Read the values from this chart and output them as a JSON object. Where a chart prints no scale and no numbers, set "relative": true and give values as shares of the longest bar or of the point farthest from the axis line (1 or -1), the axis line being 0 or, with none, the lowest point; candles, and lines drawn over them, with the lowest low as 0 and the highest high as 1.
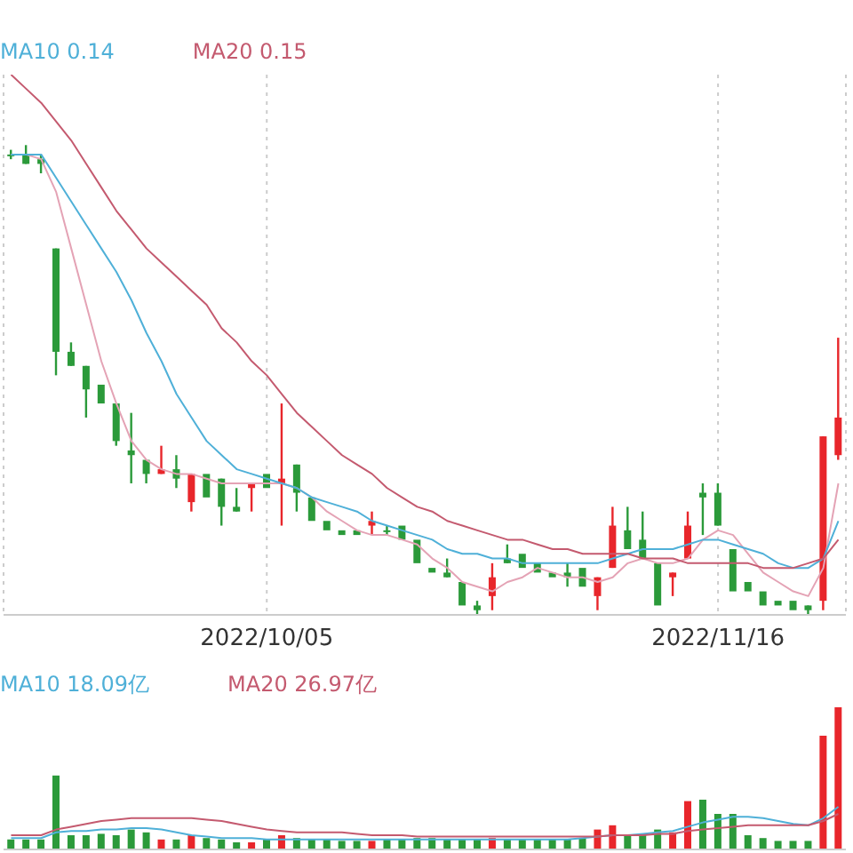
{
  "chart_data": [
    {
      "type": "candlestick",
      "relative": true,
      "legend": "top left",
      "grid": "x",
      "categories": [
        null,
        null,
        null,
        null,
        null,
        null,
        null,
        null,
        null,
        null,
        null,
        null,
        null,
        null,
        null,
        null,
        null,
        "2022/10/05",
        null,
        null,
        null,
        null,
        null,
        null,
        null,
        null,
        null,
        null,
        null,
        null,
        null,
        null,
        null,
        null,
        null,
        null,
        null,
        null,
        null,
        null,
        null,
        null,
        null,
        null,
        null,
        null,
        null,
        "2022/11/16",
        null,
        null,
        null,
        null,
        null,
        null,
        null,
        null
      ],
      "ohlc": [
        [
          0.98,
          0.99,
          0.97,
          0.98
        ],
        [
          0.98,
          1.0,
          0.96,
          0.96
        ],
        [
          0.97,
          0.98,
          0.94,
          0.96
        ],
        [
          0.78,
          0.78,
          0.51,
          0.56
        ],
        [
          0.56,
          0.58,
          0.53,
          0.53
        ],
        [
          0.53,
          0.53,
          0.42,
          0.48
        ],
        [
          0.49,
          0.49,
          0.45,
          0.45
        ],
        [
          0.45,
          0.45,
          0.36,
          0.37
        ],
        [
          0.35,
          0.43,
          0.28,
          0.34
        ],
        [
          0.33,
          0.33,
          0.28,
          0.3
        ],
        [
          0.3,
          0.36,
          0.3,
          0.31
        ],
        [
          0.31,
          0.34,
          0.27,
          0.29
        ],
        [
          0.24,
          0.3,
          0.22,
          0.3
        ],
        [
          0.3,
          0.3,
          0.25,
          0.25
        ],
        [
          0.29,
          0.29,
          0.19,
          0.23
        ],
        [
          0.23,
          0.27,
          0.22,
          0.22
        ],
        [
          0.27,
          0.28,
          0.22,
          0.28
        ],
        [
          0.3,
          0.3,
          0.27,
          0.27
        ],
        [
          0.28,
          0.45,
          0.19,
          0.29
        ],
        [
          0.32,
          0.32,
          0.22,
          0.26
        ],
        [
          0.25,
          0.25,
          0.2,
          0.2
        ],
        [
          0.2,
          0.2,
          0.18,
          0.18
        ],
        [
          0.18,
          0.18,
          0.17,
          0.17
        ],
        [
          0.18,
          0.18,
          0.17,
          0.17
        ],
        [
          0.19,
          0.22,
          0.17,
          0.2
        ],
        [
          0.18,
          0.19,
          0.17,
          0.18
        ],
        [
          0.19,
          0.19,
          0.16,
          0.16
        ],
        [
          0.16,
          0.16,
          0.11,
          0.11
        ],
        [
          0.1,
          0.1,
          0.09,
          0.09
        ],
        [
          0.09,
          0.12,
          0.08,
          0.08
        ],
        [
          0.07,
          0.07,
          0.02,
          0.02
        ],
        [
          0.02,
          0.03,
          0.0,
          0.01
        ],
        [
          0.04,
          0.11,
          0.01,
          0.08
        ],
        [
          0.12,
          0.15,
          0.11,
          0.11
        ],
        [
          0.13,
          0.13,
          0.1,
          0.1
        ],
        [
          0.11,
          0.11,
          0.09,
          0.09
        ],
        [
          0.09,
          0.09,
          0.08,
          0.08
        ],
        [
          0.09,
          0.11,
          0.06,
          0.08
        ],
        [
          0.1,
          0.1,
          0.06,
          0.06
        ],
        [
          0.04,
          0.08,
          0.01,
          0.08
        ],
        [
          0.1,
          0.23,
          0.1,
          0.19
        ],
        [
          0.18,
          0.23,
          0.14,
          0.14
        ],
        [
          0.16,
          0.22,
          0.12,
          0.12
        ],
        [
          0.11,
          0.11,
          0.02,
          0.02
        ],
        [
          0.08,
          0.09,
          0.04,
          0.09
        ],
        [
          0.12,
          0.22,
          0.12,
          0.19
        ],
        [
          0.26,
          0.28,
          0.17,
          0.25
        ],
        [
          0.26,
          0.28,
          0.19,
          0.19
        ],
        [
          0.14,
          0.14,
          0.05,
          0.05
        ],
        [
          0.07,
          0.07,
          0.05,
          0.05
        ],
        [
          0.05,
          0.05,
          0.02,
          0.02
        ],
        [
          0.03,
          0.03,
          0.02,
          0.02
        ],
        [
          0.03,
          0.03,
          0.01,
          0.01
        ],
        [
          0.02,
          0.02,
          0.0,
          0.01
        ],
        [
          0.03,
          0.38,
          0.01,
          0.38
        ],
        [
          0.34,
          0.59,
          0.33,
          0.42
        ]
      ],
      "colors": [
        "#2b9a3a",
        "#2b9a3a",
        "#2b9a3a",
        "#2b9a3a",
        "#2b9a3a",
        "#2b9a3a",
        "#2b9a3a",
        "#2b9a3a",
        "#2b9a3a",
        "#2b9a3a",
        "#e8262b",
        "#2b9a3a",
        "#e8262b",
        "#2b9a3a",
        "#2b9a3a",
        "#2b9a3a",
        "#e8262b",
        "#2b9a3a",
        "#e8262b",
        "#2b9a3a",
        "#2b9a3a",
        "#2b9a3a",
        "#2b9a3a",
        "#2b9a3a",
        "#e8262b",
        "#2b9a3a",
        "#2b9a3a",
        "#2b9a3a",
        "#2b9a3a",
        "#2b9a3a",
        "#2b9a3a",
        "#2b9a3a",
        "#e8262b",
        "#2b9a3a",
        "#2b9a3a",
        "#2b9a3a",
        "#2b9a3a",
        "#2b9a3a",
        "#2b9a3a",
        "#e8262b",
        "#e8262b",
        "#2b9a3a",
        "#2b9a3a",
        "#2b9a3a",
        "#e8262b",
        "#e8262b",
        "#2b9a3a",
        "#2b9a3a",
        "#2b9a3a",
        "#2b9a3a",
        "#2b9a3a",
        "#2b9a3a",
        "#2b9a3a",
        "#2b9a3a",
        "#e8262b",
        "#e8262b"
      ],
      "series": [
        {
          "type": "line",
          "color": "#e4a3b5",
          "values": [
            0.98,
            0.98,
            0.97,
            0.9,
            0.78,
            0.66,
            0.54,
            0.45,
            0.37,
            0.33,
            0.31,
            0.3,
            0.3,
            0.29,
            0.28,
            0.28,
            0.28,
            0.28,
            0.28,
            0.27,
            0.25,
            0.22,
            0.2,
            0.18,
            0.17,
            0.17,
            0.16,
            0.15,
            0.12,
            0.1,
            0.07,
            0.06,
            0.05,
            0.07,
            0.08,
            0.1,
            0.09,
            0.08,
            0.08,
            0.07,
            0.08,
            0.11,
            0.12,
            0.11,
            0.11,
            0.12,
            0.16,
            0.18,
            0.17,
            0.13,
            0.09,
            0.07,
            0.05,
            0.04,
            0.1,
            0.28
          ]
        },
        {
          "type": "line",
          "name": "MA10 0.14",
          "color": "#4fb0d8",
          "values": [
            0.98,
            0.98,
            0.98,
            0.93,
            0.88,
            0.83,
            0.78,
            0.73,
            0.67,
            0.6,
            0.54,
            0.47,
            0.42,
            0.37,
            0.34,
            0.31,
            0.3,
            0.29,
            0.28,
            0.27,
            0.25,
            0.24,
            0.23,
            0.22,
            0.2,
            0.19,
            0.18,
            0.17,
            0.16,
            0.14,
            0.13,
            0.13,
            0.12,
            0.12,
            0.11,
            0.11,
            0.11,
            0.11,
            0.11,
            0.11,
            0.12,
            0.13,
            0.14,
            0.14,
            0.14,
            0.15,
            0.16,
            0.16,
            0.15,
            0.14,
            0.13,
            0.11,
            0.1,
            0.1,
            0.12,
            0.2
          ]
        },
        {
          "type": "line",
          "name": "MA20 0.15",
          "color": "#c45a6f",
          "values": [
            1.15,
            1.12,
            1.09,
            1.05,
            1.01,
            0.96,
            0.91,
            0.86,
            0.82,
            0.78,
            0.75,
            0.72,
            0.69,
            0.66,
            0.61,
            0.58,
            0.54,
            0.51,
            0.47,
            0.43,
            0.4,
            0.37,
            0.34,
            0.32,
            0.3,
            0.27,
            0.25,
            0.23,
            0.22,
            0.2,
            0.19,
            0.18,
            0.17,
            0.16,
            0.16,
            0.15,
            0.14,
            0.14,
            0.13,
            0.13,
            0.13,
            0.13,
            0.12,
            0.12,
            0.12,
            0.11,
            0.11,
            0.11,
            0.11,
            0.11,
            0.1,
            0.1,
            0.1,
            0.11,
            0.12,
            0.16
          ]
        }
      ]
    },
    {
      "type": "bar",
      "relative": true,
      "legend": "top left",
      "tick_labels": false,
      "categories": [
        null,
        null,
        null,
        null,
        null,
        null,
        null,
        null,
        null,
        null,
        null,
        null,
        null,
        null,
        null,
        null,
        null,
        null,
        null,
        null,
        null,
        null,
        null,
        null,
        null,
        null,
        null,
        null,
        null,
        null,
        null,
        null,
        null,
        null,
        null,
        null,
        null,
        null,
        null,
        null,
        null,
        null,
        null,
        null,
        null,
        null,
        null,
        null,
        null,
        null,
        null,
        null,
        null,
        null,
        null,
        null
      ],
      "values": [
        0.07,
        0.07,
        0.07,
        0.52,
        0.1,
        0.1,
        0.11,
        0.1,
        0.14,
        0.12,
        0.07,
        0.07,
        0.1,
        0.08,
        0.07,
        0.05,
        0.05,
        0.07,
        0.1,
        0.08,
        0.07,
        0.07,
        0.06,
        0.06,
        0.06,
        0.07,
        0.07,
        0.08,
        0.08,
        0.07,
        0.07,
        0.07,
        0.08,
        0.07,
        0.07,
        0.07,
        0.07,
        0.07,
        0.08,
        0.14,
        0.17,
        0.1,
        0.1,
        0.14,
        0.12,
        0.34,
        0.35,
        0.25,
        0.25,
        0.1,
        0.08,
        0.06,
        0.06,
        0.06,
        0.8,
        1.0
      ],
      "colors": [
        "#2b9a3a",
        "#2b9a3a",
        "#2b9a3a",
        "#2b9a3a",
        "#2b9a3a",
        "#2b9a3a",
        "#2b9a3a",
        "#2b9a3a",
        "#2b9a3a",
        "#2b9a3a",
        "#e8262b",
        "#2b9a3a",
        "#e8262b",
        "#2b9a3a",
        "#2b9a3a",
        "#2b9a3a",
        "#e8262b",
        "#2b9a3a",
        "#e8262b",
        "#2b9a3a",
        "#2b9a3a",
        "#2b9a3a",
        "#2b9a3a",
        "#2b9a3a",
        "#e8262b",
        "#2b9a3a",
        "#2b9a3a",
        "#2b9a3a",
        "#2b9a3a",
        "#2b9a3a",
        "#2b9a3a",
        "#2b9a3a",
        "#e8262b",
        "#2b9a3a",
        "#2b9a3a",
        "#2b9a3a",
        "#2b9a3a",
        "#2b9a3a",
        "#2b9a3a",
        "#e8262b",
        "#e8262b",
        "#2b9a3a",
        "#2b9a3a",
        "#2b9a3a",
        "#e8262b",
        "#e8262b",
        "#2b9a3a",
        "#2b9a3a",
        "#2b9a3a",
        "#2b9a3a",
        "#2b9a3a",
        "#2b9a3a",
        "#2b9a3a",
        "#2b9a3a",
        "#e8262b",
        "#e8262b"
      ],
      "series": [
        {
          "type": "line",
          "name": "MA10 18.09亿",
          "color": "#4fb0d8",
          "values": [
            0.08,
            0.08,
            0.08,
            0.12,
            0.13,
            0.13,
            0.14,
            0.14,
            0.15,
            0.15,
            0.14,
            0.12,
            0.1,
            0.09,
            0.08,
            0.08,
            0.08,
            0.07,
            0.07,
            0.07,
            0.07,
            0.07,
            0.07,
            0.07,
            0.07,
            0.07,
            0.07,
            0.07,
            0.07,
            0.07,
            0.07,
            0.07,
            0.07,
            0.07,
            0.07,
            0.07,
            0.07,
            0.07,
            0.08,
            0.09,
            0.1,
            0.1,
            0.11,
            0.12,
            0.13,
            0.16,
            0.19,
            0.21,
            0.23,
            0.23,
            0.22,
            0.2,
            0.18,
            0.17,
            0.22,
            0.3
          ]
        },
        {
          "type": "line",
          "name": "MA20 26.97亿",
          "color": "#c45a6f",
          "values": [
            0.1,
            0.1,
            0.1,
            0.14,
            0.16,
            0.18,
            0.2,
            0.21,
            0.22,
            0.22,
            0.22,
            0.22,
            0.22,
            0.21,
            0.2,
            0.18,
            0.16,
            0.14,
            0.13,
            0.12,
            0.12,
            0.12,
            0.12,
            0.11,
            0.1,
            0.1,
            0.1,
            0.09,
            0.09,
            0.09,
            0.09,
            0.09,
            0.09,
            0.09,
            0.09,
            0.09,
            0.09,
            0.09,
            0.09,
            0.09,
            0.1,
            0.1,
            0.1,
            0.11,
            0.11,
            0.13,
            0.14,
            0.15,
            0.16,
            0.17,
            0.17,
            0.17,
            0.17,
            0.17,
            0.2,
            0.25
          ]
        }
      ]
    }
  ]
}
